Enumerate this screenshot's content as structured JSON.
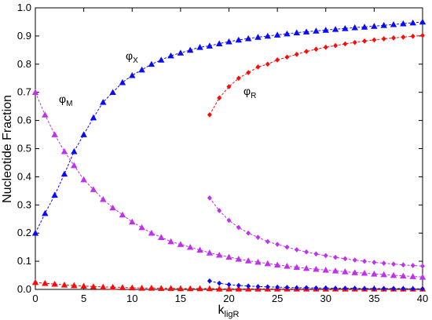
{
  "chart_data": {
    "type": "line",
    "xlabel": {
      "main": "k",
      "sub": "ligR"
    },
    "ylabel": "Nucleotide Fraction",
    "xlim": [
      0,
      40
    ],
    "ylim": [
      0,
      1
    ],
    "xticks": [
      0,
      5,
      10,
      15,
      20,
      25,
      30,
      35,
      40
    ],
    "yticks": [
      {
        "value": 0,
        "label": "0.0"
      },
      0.1,
      0.2,
      0.3,
      0.4,
      0.5,
      0.6,
      0.7,
      0.8,
      0.9,
      {
        "value": 1,
        "label": "1.0"
      }
    ],
    "grid": false,
    "annotations": [
      {
        "symbol": "φ",
        "sub": "X"
      },
      {
        "symbol": "φ",
        "sub": "M"
      },
      {
        "symbol": "φ",
        "sub": "R"
      }
    ],
    "series": [
      {
        "color": "#0a0aff",
        "marker": "triangle",
        "x": [
          0,
          1,
          2,
          3,
          4,
          5,
          6,
          7,
          8,
          9,
          10,
          11,
          12,
          13,
          14,
          15,
          16,
          17,
          18,
          19,
          20,
          21,
          22,
          23,
          24,
          25,
          26,
          27,
          28,
          29,
          30,
          31,
          32,
          33,
          34,
          35,
          36,
          37,
          38,
          39,
          40
        ],
        "values": [
          0.2,
          0.27,
          0.335,
          0.41,
          0.49,
          0.55,
          0.61,
          0.665,
          0.7,
          0.735,
          0.76,
          0.78,
          0.8,
          0.815,
          0.83,
          0.84,
          0.85,
          0.86,
          0.865,
          0.873,
          0.88,
          0.886,
          0.891,
          0.896,
          0.9,
          0.904,
          0.908,
          0.912,
          0.915,
          0.918,
          0.921,
          0.924,
          0.927,
          0.93,
          0.932,
          0.935,
          0.938,
          0.941,
          0.944,
          0.947,
          0.95
        ]
      },
      {
        "color": "#c030f0",
        "marker": "triangle",
        "x": [
          0,
          1,
          2,
          3,
          4,
          5,
          6,
          7,
          8,
          9,
          10,
          11,
          12,
          13,
          14,
          15,
          16,
          17,
          18,
          19,
          20,
          21,
          22,
          23,
          24,
          25,
          26,
          27,
          28,
          29,
          30,
          31,
          32,
          33,
          34,
          35,
          36,
          37,
          38,
          39,
          40
        ],
        "values": [
          0.7,
          0.62,
          0.55,
          0.49,
          0.44,
          0.39,
          0.355,
          0.32,
          0.29,
          0.265,
          0.24,
          0.22,
          0.2,
          0.185,
          0.17,
          0.16,
          0.15,
          0.14,
          0.13,
          0.122,
          0.115,
          0.108,
          0.102,
          0.097,
          0.092,
          0.087,
          0.083,
          0.079,
          0.075,
          0.072,
          0.069,
          0.066,
          0.063,
          0.06,
          0.058,
          0.055,
          0.053,
          0.05,
          0.048,
          0.046,
          0.044
        ]
      },
      {
        "color": "#ff0a0a",
        "marker": "triangle",
        "x": [
          0,
          1,
          2,
          3,
          4,
          5,
          6,
          7,
          8,
          9,
          10,
          11,
          12,
          13,
          14,
          15,
          16,
          17,
          18,
          19,
          20,
          21,
          22,
          23,
          24,
          25,
          26,
          27,
          28,
          29,
          30,
          31,
          32,
          33,
          34,
          35,
          36,
          37,
          38,
          39,
          40
        ],
        "values": [
          0.025,
          0.022,
          0.019,
          0.016,
          0.014,
          0.012,
          0.01,
          0.009,
          0.008,
          0.007,
          0.006,
          0.005,
          0.005,
          0.004,
          0.004,
          0.003,
          0.003,
          0.003,
          0.003,
          0.002,
          0.002,
          0.002,
          0.002,
          0.002,
          0.002,
          0.002,
          0.002,
          0.002,
          0.002,
          0.002,
          0.002,
          0.002,
          0.002,
          0.002,
          0.002,
          0.002,
          0.002,
          0.002,
          0.002,
          0.002,
          0.002
        ]
      },
      {
        "color": "#ff0a0a",
        "marker": "diamond",
        "x": [
          18,
          19,
          20,
          21,
          22,
          23,
          24,
          25,
          26,
          27,
          28,
          29,
          30,
          31,
          32,
          33,
          34,
          35,
          36,
          37,
          38,
          39,
          40
        ],
        "values": [
          0.62,
          0.68,
          0.72,
          0.75,
          0.77,
          0.79,
          0.8,
          0.815,
          0.825,
          0.835,
          0.845,
          0.853,
          0.86,
          0.866,
          0.872,
          0.877,
          0.882,
          0.886,
          0.89,
          0.893,
          0.896,
          0.899,
          0.902
        ]
      },
      {
        "color": "#c030f0",
        "marker": "diamond",
        "x": [
          18,
          19,
          20,
          21,
          22,
          23,
          24,
          25,
          26,
          27,
          28,
          29,
          30,
          31,
          32,
          33,
          34,
          35,
          36,
          37,
          38,
          39,
          40
        ],
        "values": [
          0.325,
          0.28,
          0.245,
          0.22,
          0.2,
          0.185,
          0.17,
          0.16,
          0.15,
          0.141,
          0.133,
          0.126,
          0.12,
          0.114,
          0.109,
          0.104,
          0.1,
          0.096,
          0.093,
          0.09,
          0.087,
          0.085,
          0.083
        ]
      },
      {
        "color": "#0a0aff",
        "marker": "diamond",
        "x": [
          18,
          19,
          20,
          21,
          22,
          23,
          24,
          25,
          26,
          27,
          28,
          29,
          30,
          31,
          32,
          33,
          34,
          35,
          36,
          37,
          38,
          39,
          40
        ],
        "values": [
          0.03,
          0.022,
          0.017,
          0.014,
          0.012,
          0.01,
          0.009,
          0.008,
          0.007,
          0.006,
          0.006,
          0.005,
          0.005,
          0.004,
          0.004,
          0.004,
          0.003,
          0.003,
          0.003,
          0.003,
          0.003,
          0.002,
          0.002
        ]
      }
    ]
  }
}
